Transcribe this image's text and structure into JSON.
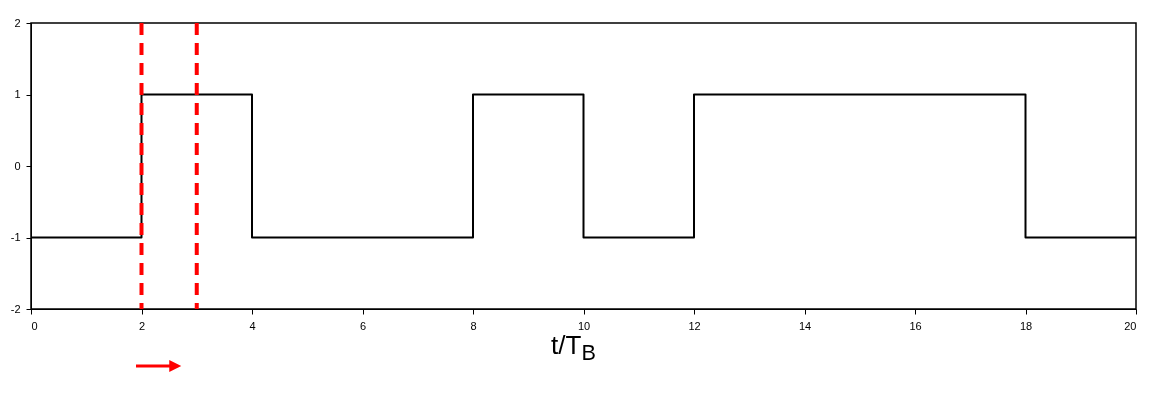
{
  "chart_data": {
    "type": "step",
    "xlabel": "t/T$_{B}$",
    "x": [
      0,
      2,
      4,
      8,
      10,
      12,
      18,
      20
    ],
    "series": [
      {
        "color": "#000000",
        "values": [
          -1,
          1,
          -1,
          1,
          -1,
          1,
          -1,
          -1
        ]
      }
    ],
    "xlim": [
      0,
      20
    ],
    "xticks": [
      0,
      2,
      4,
      6,
      8,
      10,
      12,
      14,
      16,
      18,
      20
    ],
    "ylim": [
      -2,
      2
    ],
    "yticks": [
      -2,
      -1,
      0,
      1,
      2
    ],
    "ref_lines": [
      {
        "axis": "x",
        "value": 2,
        "color": "#ff0000",
        "line_style": "dashed"
      },
      {
        "axis": "x",
        "value": 3,
        "color": "#ff0000",
        "line_style": "dashed"
      }
    ],
    "grid": false
  }
}
